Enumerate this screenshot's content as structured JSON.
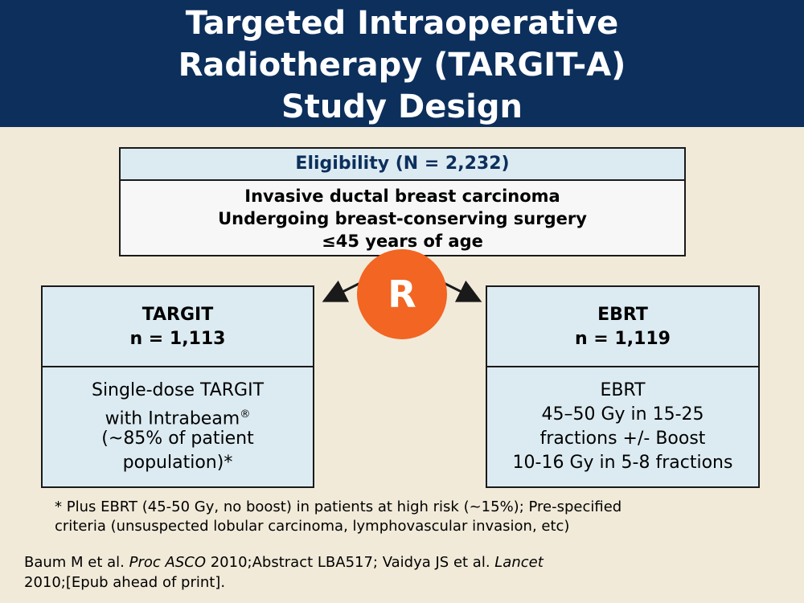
{
  "title": {
    "line1": "Targeted Intraoperative",
    "line2": "Radiotherapy (TARGIT-A)",
    "line3": "Study Design"
  },
  "eligibility": {
    "header": "Eligibility (N = 2,232)",
    "criteria": [
      "Invasive ductal breast carcinoma",
      "Undergoing breast-conserving surgery",
      "≤45 years of age"
    ]
  },
  "randomization_label": "R",
  "arms": {
    "targit": {
      "name": "TARGIT",
      "n": "n = 1,113",
      "lines": [
        "Single-dose TARGIT",
        "with Intrabeam",
        "(~85% of patient",
        "population)*"
      ],
      "registered_mark": "®"
    },
    "ebrt": {
      "name": "EBRT",
      "n": "n = 1,119",
      "lines": [
        "EBRT",
        "45–50 Gy in 15-25",
        "fractions +/- Boost",
        "10-16 Gy in 5-8 fractions"
      ]
    }
  },
  "footnote": {
    "line1": "* Plus EBRT (45-50 Gy, no boost) in patients at high risk (~15%); Pre-specified",
    "line2": "criteria (unsuspected lobular carcinoma, lymphovascular invasion, etc)"
  },
  "reference": {
    "part1": "Baum M et al. ",
    "journal1": "Proc ASCO",
    "part2": " 2010;Abstract LBA517; Vaidya JS et al. ",
    "journal2": "Lancet",
    "line2": "2010;[Epub ahead of print]."
  },
  "colors": {
    "title_bar": "#0c2f5c",
    "background": "#f1ead9",
    "box_fill": "#dcebf2",
    "randomization": "#f26522"
  }
}
